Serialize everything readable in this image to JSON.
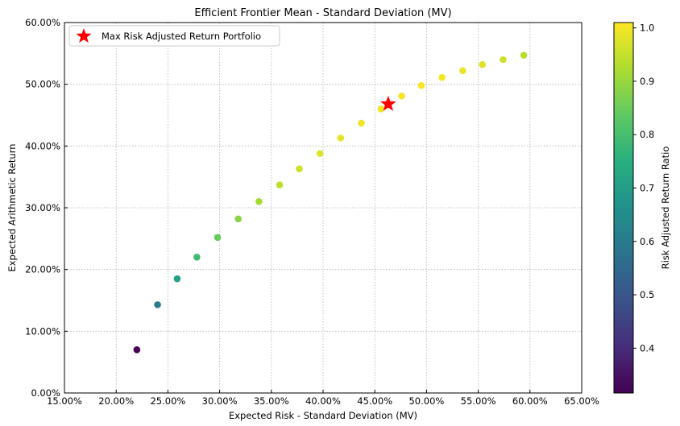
{
  "chart_data": {
    "type": "scatter",
    "title": "Efficient Frontier Mean - Standard Deviation (MV)",
    "xlabel": "Expected Risk - Standard Deviation (MV)",
    "ylabel": "Expected Arithmetic Return",
    "xlim": [
      0.15,
      0.65
    ],
    "ylim": [
      0.0,
      0.6
    ],
    "x_ticks": [
      0.15,
      0.2,
      0.25,
      0.3,
      0.35,
      0.4,
      0.45,
      0.5,
      0.55,
      0.6,
      0.65
    ],
    "x_tick_labels": [
      "15.00%",
      "20.00%",
      "25.00%",
      "30.00%",
      "35.00%",
      "40.00%",
      "45.00%",
      "50.00%",
      "55.00%",
      "60.00%",
      "65.00%"
    ],
    "y_ticks": [
      0.0,
      0.1,
      0.2,
      0.3,
      0.4,
      0.5,
      0.6
    ],
    "y_tick_labels": [
      "0.00%",
      "10.00%",
      "20.00%",
      "30.00%",
      "40.00%",
      "50.00%",
      "60.00%"
    ],
    "grid": true,
    "legend_placement": "top-left",
    "legend_label": "Max Risk Adjusted Return Portfolio",
    "colorbar": {
      "label": "Risk Adjusted Return Ratio",
      "range": [
        0.316,
        1.01
      ],
      "ticks": [
        0.4,
        0.5,
        0.6,
        0.7,
        0.8,
        0.9,
        1.0
      ],
      "tick_labels": [
        "0.4",
        "0.5",
        "0.6",
        "0.7",
        "0.8",
        "0.9",
        "1.0"
      ],
      "colormap": "viridis"
    },
    "points": [
      {
        "x": 0.22,
        "y": 0.07,
        "ratio": 0.32
      },
      {
        "x": 0.24,
        "y": 0.143,
        "ratio": 0.6
      },
      {
        "x": 0.259,
        "y": 0.185,
        "ratio": 0.71
      },
      {
        "x": 0.278,
        "y": 0.22,
        "ratio": 0.79
      },
      {
        "x": 0.298,
        "y": 0.252,
        "ratio": 0.845
      },
      {
        "x": 0.318,
        "y": 0.282,
        "ratio": 0.885
      },
      {
        "x": 0.338,
        "y": 0.31,
        "ratio": 0.915
      },
      {
        "x": 0.358,
        "y": 0.337,
        "ratio": 0.94
      },
      {
        "x": 0.377,
        "y": 0.363,
        "ratio": 0.96
      },
      {
        "x": 0.397,
        "y": 0.388,
        "ratio": 0.975
      },
      {
        "x": 0.417,
        "y": 0.413,
        "ratio": 0.985
      },
      {
        "x": 0.437,
        "y": 0.437,
        "ratio": 0.995
      },
      {
        "x": 0.456,
        "y": 0.46,
        "ratio": 1.0
      },
      {
        "x": 0.476,
        "y": 0.481,
        "ratio": 1.005
      },
      {
        "x": 0.495,
        "y": 0.498,
        "ratio": 1.005
      },
      {
        "x": 0.515,
        "y": 0.511,
        "ratio": 1.0
      },
      {
        "x": 0.535,
        "y": 0.522,
        "ratio": 0.99
      },
      {
        "x": 0.554,
        "y": 0.532,
        "ratio": 0.975
      },
      {
        "x": 0.574,
        "y": 0.54,
        "ratio": 0.955
      },
      {
        "x": 0.594,
        "y": 0.547,
        "ratio": 0.935
      }
    ],
    "max_portfolio": {
      "x": 0.463,
      "y": 0.468,
      "color": "#ff0000"
    }
  }
}
